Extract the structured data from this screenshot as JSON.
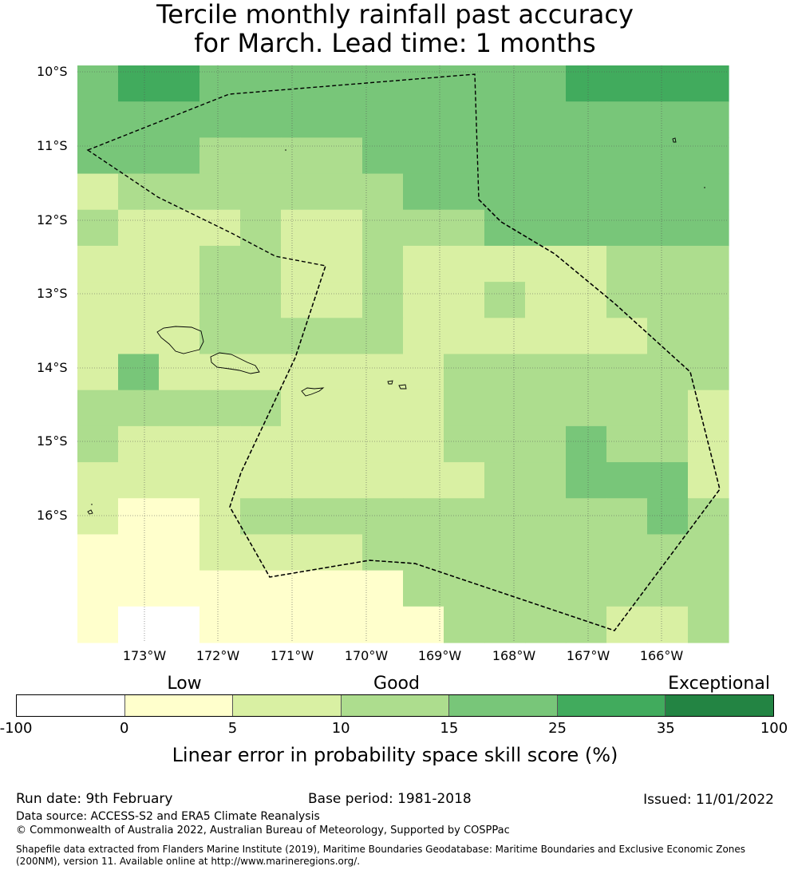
{
  "title_line1": "Tercile monthly rainfall past accuracy",
  "title_line2": "for March. Lead time: 1 months",
  "map": {
    "lat_labels": [
      "10°S",
      "11°S",
      "12°S",
      "13°S",
      "14°S",
      "15°S",
      "16°S"
    ],
    "lon_labels": [
      "173°W",
      "172°W",
      "171°W",
      "170°W",
      "169°W",
      "168°W",
      "167°W",
      "166°W"
    ],
    "grid": {
      "rows": [
        [
          4,
          5,
          5,
          4,
          4,
          4,
          4,
          4,
          4,
          4,
          4,
          4,
          5,
          5,
          5,
          5
        ],
        [
          4,
          4,
          4,
          4,
          4,
          4,
          4,
          4,
          4,
          4,
          4,
          4,
          4,
          4,
          4,
          4
        ],
        [
          4,
          4,
          4,
          3,
          3,
          3,
          3,
          4,
          4,
          4,
          4,
          4,
          4,
          4,
          4,
          4
        ],
        [
          2,
          3,
          3,
          3,
          3,
          3,
          3,
          3,
          4,
          4,
          4,
          4,
          4,
          4,
          4,
          4
        ],
        [
          3,
          2,
          2,
          2,
          3,
          2,
          2,
          3,
          3,
          3,
          4,
          4,
          4,
          4,
          4,
          4
        ],
        [
          2,
          2,
          2,
          3,
          3,
          2,
          2,
          3,
          2,
          2,
          2,
          2,
          2,
          3,
          3,
          3
        ],
        [
          2,
          2,
          2,
          3,
          3,
          2,
          2,
          3,
          2,
          2,
          3,
          2,
          2,
          3,
          3,
          3
        ],
        [
          2,
          2,
          2,
          3,
          3,
          3,
          3,
          3,
          2,
          2,
          2,
          2,
          2,
          2,
          3,
          3
        ],
        [
          2,
          4,
          2,
          2,
          2,
          2,
          2,
          2,
          2,
          3,
          3,
          3,
          3,
          3,
          3,
          3
        ],
        [
          3,
          3,
          3,
          3,
          3,
          2,
          2,
          2,
          2,
          3,
          3,
          3,
          3,
          3,
          3,
          2
        ],
        [
          3,
          2,
          2,
          2,
          2,
          2,
          2,
          2,
          2,
          3,
          3,
          3,
          4,
          3,
          3,
          2
        ],
        [
          2,
          2,
          2,
          2,
          2,
          2,
          2,
          2,
          2,
          2,
          3,
          3,
          4,
          4,
          4,
          2
        ],
        [
          2,
          1,
          1,
          2,
          3,
          3,
          3,
          3,
          3,
          3,
          3,
          3,
          3,
          3,
          4,
          3
        ],
        [
          1,
          1,
          1,
          2,
          2,
          2,
          2,
          3,
          3,
          3,
          3,
          3,
          3,
          3,
          3,
          3
        ],
        [
          1,
          1,
          1,
          1,
          1,
          1,
          1,
          1,
          3,
          3,
          3,
          3,
          3,
          3,
          3,
          3
        ],
        [
          1,
          0,
          0,
          1,
          1,
          1,
          1,
          1,
          1,
          3,
          3,
          3,
          3,
          2,
          2,
          3
        ]
      ]
    }
  },
  "legend": {
    "colors": [
      "#ffffff",
      "#ffffcc",
      "#d9f0a3",
      "#addd8e",
      "#78c679",
      "#41ab5d",
      "#238443"
    ],
    "ticks": [
      "-100",
      "0",
      "5",
      "10",
      "15",
      "25",
      "35",
      "100"
    ],
    "categories": [
      "Low",
      "Good",
      "Exceptional"
    ],
    "label": "Linear error in probability space skill score (%)"
  },
  "footer": {
    "run_date": "Run date: 9th February",
    "base_period": "Base period: 1981-2018",
    "issued": "Issued: 11/01/2022",
    "data_source": "Data source: ACCESS-S2 and ERA5 Climate Reanalysis",
    "copyright": "© Commonwealth of Australia 2022, Australian Bureau of Meteorology, Supported by COSPPac",
    "shapefile": "Shapefile data extracted from Flanders Marine Institute (2019), Maritime Boundaries Geodatabase: Maritime Boundaries and Exclusive Economic Zones (200NM), version 11. Available online at http://www.marineregions.org/."
  }
}
